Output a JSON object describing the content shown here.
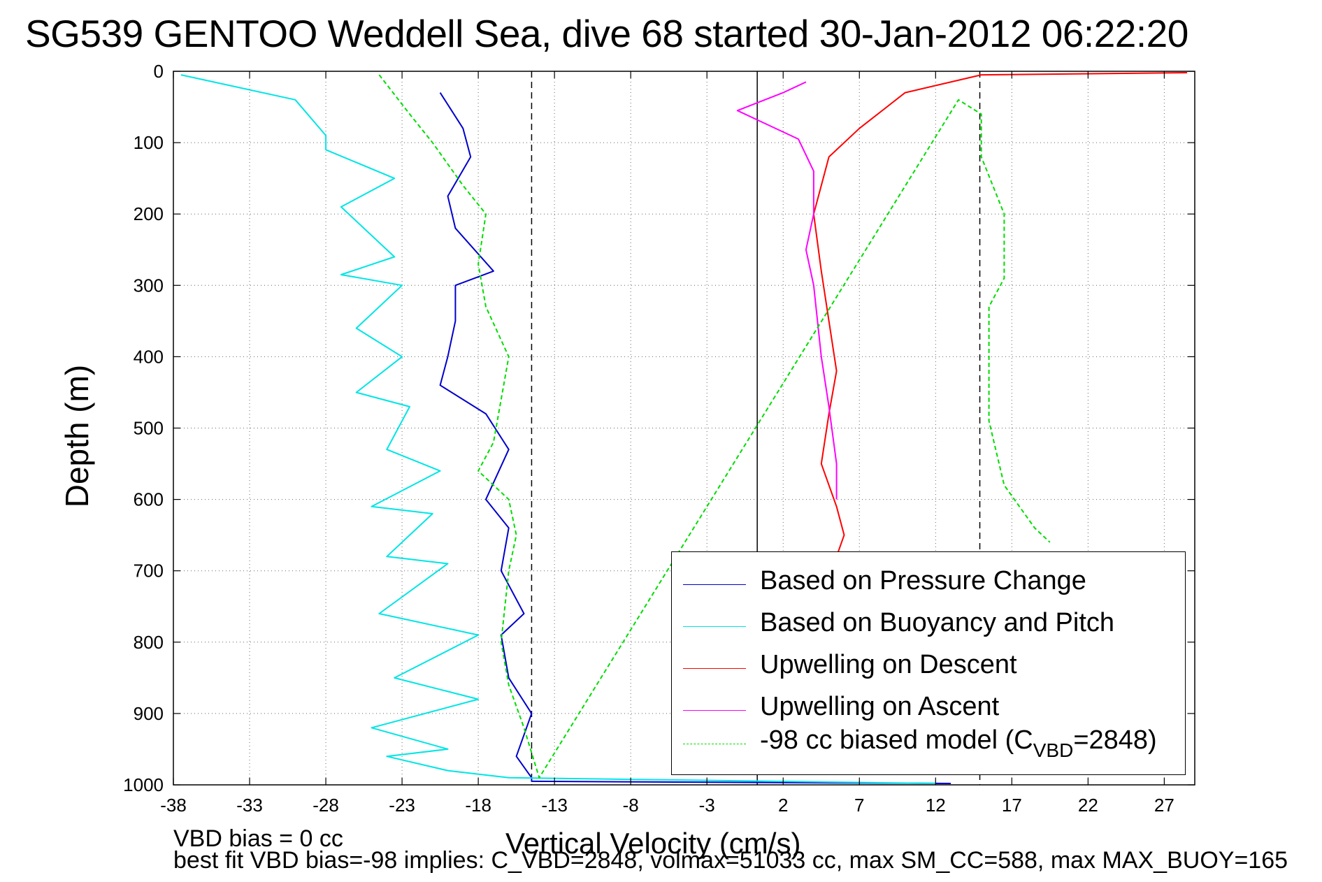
{
  "title": "SG539 GENTOO Weddell Sea, dive 68 started 30-Jan-2012 06:22:20",
  "notes": {
    "line1": "VBD bias = 0 cc",
    "line2": "best fit VBD bias=-98 implies: C_VBD=2848, volmax=51033 cc, max SM_CC=588, max MAX_BUOY=165"
  },
  "chart_data": {
    "type": "line",
    "xlabel": "Vertical Velocity (cm/s)",
    "ylabel": "Depth (m)",
    "xlim": [
      -38,
      29
    ],
    "ylim": [
      1000,
      0
    ],
    "x_ticks": [
      -38,
      -33,
      -28,
      -23,
      -18,
      -13,
      -8,
      -3,
      2,
      7,
      12,
      17,
      22,
      27
    ],
    "y_ticks": [
      0,
      100,
      200,
      300,
      400,
      500,
      600,
      700,
      800,
      900,
      1000
    ],
    "grid": true,
    "legend_position": "bottom-right",
    "reference_lines": [
      {
        "x": -14.5,
        "style": "dashed",
        "color": "#000000"
      },
      {
        "x": 0.3,
        "style": "solid",
        "color": "#000000"
      },
      {
        "x": 14.9,
        "style": "dashed",
        "color": "#000000"
      }
    ],
    "series": [
      {
        "name": "Based on Pressure Change",
        "color": "#0000cc",
        "style": "solid",
        "x": [
          -20.5,
          -19,
          -18.5,
          -20,
          -19.5,
          -17,
          -19.5,
          -19.5,
          -20,
          -20.5,
          -17.5,
          -16,
          -17.5,
          -16,
          -16.5,
          -15,
          -16.5,
          -16,
          -14.5,
          -15.5,
          -14.5,
          -14.5,
          13
        ],
        "y": [
          30,
          80,
          120,
          175,
          220,
          280,
          300,
          350,
          400,
          440,
          480,
          530,
          600,
          640,
          700,
          760,
          790,
          850,
          900,
          960,
          990,
          995,
          998
        ]
      },
      {
        "name": "Based on Buoyancy and Pitch",
        "color": "#00e5e5",
        "style": "solid",
        "x": [
          -37.5,
          -30,
          -28,
          -28,
          -23.5,
          -27,
          -23.5,
          -27,
          -23,
          -26,
          -23,
          -26,
          -22.5,
          -24,
          -20.5,
          -25,
          -21,
          -24,
          -20,
          -24.5,
          -18,
          -23.5,
          -18,
          -25,
          -20,
          -24,
          -20,
          -16,
          12
        ],
        "y": [
          5,
          40,
          90,
          110,
          150,
          190,
          260,
          285,
          300,
          360,
          400,
          450,
          470,
          530,
          560,
          610,
          620,
          680,
          690,
          760,
          790,
          850,
          880,
          920,
          950,
          960,
          980,
          990,
          998
        ]
      },
      {
        "name": "Upwelling on Descent",
        "color": "#ff0000",
        "style": "solid",
        "x": [
          28.5,
          15,
          10,
          7,
          5,
          4.5,
          4,
          4.5,
          5,
          5.5,
          5,
          4.5,
          5.5,
          6,
          5.5,
          6
        ],
        "y": [
          2,
          5,
          30,
          80,
          120,
          160,
          200,
          280,
          350,
          420,
          480,
          550,
          610,
          650,
          680,
          920
        ]
      },
      {
        "name": "Upwelling on Ascent",
        "color": "#ff00ff",
        "style": "solid",
        "x": [
          3.5,
          2,
          -1,
          1,
          3,
          4,
          4,
          3.5,
          4,
          4.5,
          5,
          5.5,
          5.5
        ],
        "y": [
          15,
          30,
          55,
          75,
          95,
          140,
          200,
          250,
          300,
          400,
          470,
          550,
          600
        ]
      },
      {
        "name": "-98 cc biased model (C_VBD=2848)",
        "color": "#00dd00",
        "style": "dashed",
        "x": [
          -24.5,
          -22.5,
          -21,
          -19,
          -17.5,
          -18,
          -17.5,
          -16,
          -16.5,
          -17,
          -18,
          -16,
          -15.5,
          -16,
          -16.5,
          -16,
          -15,
          -14,
          13.5,
          15,
          15,
          16.5,
          16.5,
          15.5,
          15.5,
          16.5,
          18.5,
          19.5
        ],
        "y": [
          5,
          60,
          100,
          160,
          200,
          270,
          330,
          400,
          460,
          520,
          560,
          600,
          650,
          700,
          800,
          860,
          920,
          990,
          40,
          60,
          120,
          200,
          290,
          330,
          490,
          580,
          640,
          660
        ]
      }
    ]
  },
  "legend": {
    "items": [
      {
        "label": "Based on Pressure Change",
        "color": "#0000cc",
        "dash": false
      },
      {
        "label": "Based on Buoyancy and Pitch",
        "color": "#00e5e5",
        "dash": false
      },
      {
        "label": "Upwelling on Descent",
        "color": "#ff0000",
        "dash": false
      },
      {
        "label": "Upwelling on Ascent",
        "color": "#ff00ff",
        "dash": false
      },
      {
        "label_pre": "-98 cc biased model (C",
        "label_sub": "VBD",
        "label_post": "=2848)",
        "color": "#00dd00",
        "dash": true
      }
    ]
  }
}
